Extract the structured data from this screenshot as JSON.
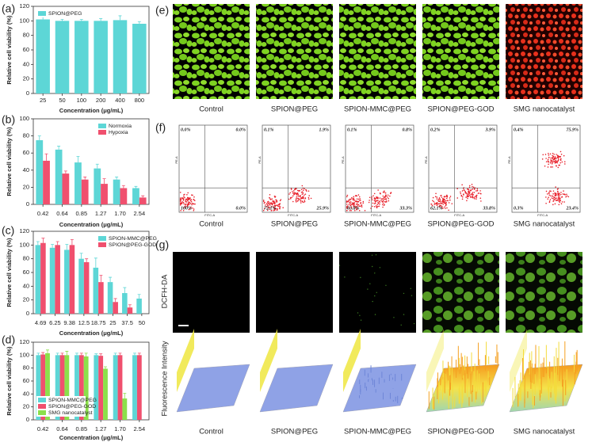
{
  "chart_data": [
    {
      "type": "bar",
      "categories": [
        "25",
        "50",
        "100",
        "200",
        "400",
        "800"
      ],
      "series": [
        {
          "name": "SPION@PEG",
          "color": "#5dd6d6",
          "values": [
            102,
            100,
            100,
            100,
            101,
            96
          ],
          "errors": [
            3,
            2,
            2,
            3,
            6,
            3
          ]
        }
      ],
      "ylim": [
        0,
        120
      ],
      "yticks": [
        0,
        20,
        40,
        60,
        80,
        100,
        120
      ],
      "y_label": "Relative cell viability (%)",
      "x_label": "Concentration (μg/mL)",
      "legend": "upper left"
    },
    {
      "type": "bar",
      "categories": [
        "0.42",
        "0.64",
        "0.85",
        "1.27",
        "1.70",
        "2.54"
      ],
      "series": [
        {
          "name": "Normoxia",
          "color": "#5dd6d6",
          "values": [
            75,
            64,
            49,
            42,
            29,
            19
          ],
          "errors": [
            5,
            4,
            7,
            5,
            3,
            2
          ]
        },
        {
          "name": "Hypoxia",
          "color": "#f0506e",
          "values": [
            51,
            36,
            29,
            24,
            19,
            8
          ],
          "errors": [
            8,
            3,
            3,
            6,
            3,
            2
          ]
        }
      ],
      "ylim": [
        0,
        100
      ],
      "yticks": [
        0,
        20,
        40,
        60,
        80,
        100
      ],
      "y_label": "Relative cell viability (%)",
      "x_label": "Concentration (μg/mL)",
      "legend": "upper right"
    },
    {
      "type": "bar",
      "categories": [
        "4.69",
        "6.25",
        "9.38",
        "12.5",
        "18.75",
        "25",
        "37.5",
        "50"
      ],
      "series": [
        {
          "name": "SPION-MMC@PEG",
          "color": "#5dd6d6",
          "values": [
            100,
            96,
            93,
            80,
            67,
            46,
            30,
            22
          ],
          "errors": [
            5,
            5,
            8,
            8,
            14,
            7,
            8,
            6
          ]
        },
        {
          "name": "SPION@PEG-GOD",
          "color": "#f0506e",
          "values": [
            103,
            100,
            100,
            75,
            46,
            17,
            9,
            null
          ],
          "errors": [
            7,
            5,
            8,
            5,
            10,
            5,
            4,
            null
          ]
        }
      ],
      "ylim": [
        0,
        120
      ],
      "yticks": [
        0,
        20,
        40,
        60,
        80,
        100,
        120
      ],
      "y_label": "Relative cell viability (%)",
      "x_label": "Concentration (μg/mL)",
      "legend": "upper right"
    },
    {
      "type": "bar",
      "categories": [
        "0.42",
        "0.64",
        "0.85",
        "1.27",
        "1.70",
        "2.54"
      ],
      "series": [
        {
          "name": "SPION-MMC@PEG",
          "color": "#5dd6d6",
          "values": [
            100,
            100,
            100,
            100,
            100,
            100
          ],
          "errors": [
            3,
            3,
            3,
            2,
            3,
            3
          ]
        },
        {
          "name": "SPION@PEG-GOD",
          "color": "#f0506e",
          "values": [
            101,
            100,
            100,
            99,
            100,
            100
          ],
          "errors": [
            3,
            3,
            3,
            3,
            3,
            3
          ]
        },
        {
          "name": "SMG nanocatalyst",
          "color": "#8ce04a",
          "values": [
            103,
            100,
            98,
            79,
            33,
            null
          ],
          "errors": [
            5,
            6,
            5,
            3,
            8,
            null
          ]
        }
      ],
      "ylim": [
        0,
        120
      ],
      "yticks": [
        0,
        20,
        40,
        60,
        80,
        100,
        120
      ],
      "y_label": "Relative cell viability (%)",
      "x_label": "Concentration (μg/mL)",
      "legend": "lower left"
    }
  ],
  "panel_labels": [
    "(a)",
    "(b)",
    "(c)",
    "(d)",
    "(e)",
    "(f)",
    "(g)"
  ],
  "groups": [
    "Control",
    "SPION@PEG",
    "SPION-MMC@PEG",
    "SPION@PEG-GOD",
    "SMG nanocatalyst"
  ],
  "flow": {
    "x_label": "FITC-A",
    "y_label": "PE-A",
    "quadrants": [
      [
        "0.0%",
        "0.0%",
        "100%",
        "0.0%"
      ],
      [
        "0.1%",
        "1.9%",
        "72.1%",
        "25.9%"
      ],
      [
        "0.1%",
        "0.8%",
        "65.8%",
        "33.3%"
      ],
      [
        "0.2%",
        "3.9%",
        "62.1%",
        "33.8%"
      ],
      [
        "0.4%",
        "75.9%",
        "0.3%",
        "23.4%"
      ]
    ]
  },
  "dcfh_label": "DCFH-DA",
  "intensity_label": "Fluorescence Intensity"
}
